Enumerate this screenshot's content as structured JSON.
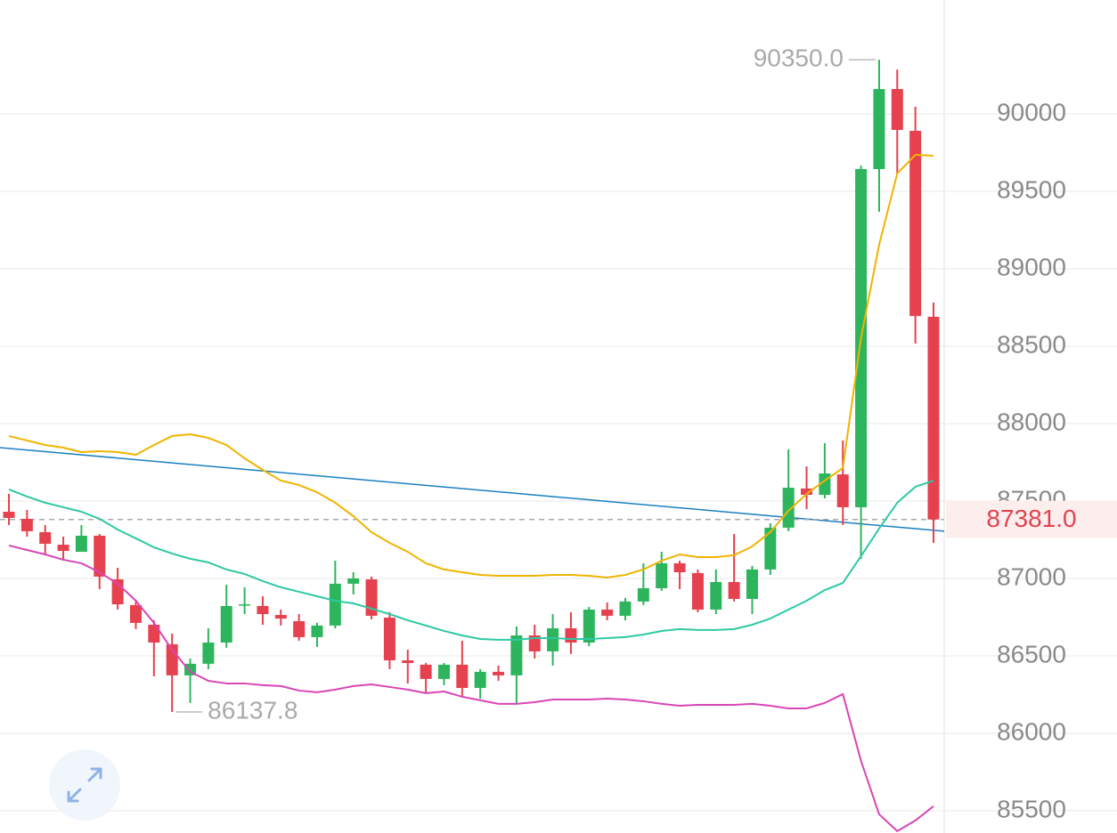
{
  "chart_data": {
    "type": "candlestick",
    "up_color": "#2db55d",
    "down_color": "#e5414e",
    "ylim": [
      85356,
      90736
    ],
    "yticks": [
      85500,
      86000,
      86500,
      87000,
      87500,
      88000,
      88500,
      89000,
      89500,
      90000
    ],
    "grid": true,
    "open": [
      87431,
      87385,
      87299,
      87218,
      87172,
      87276,
      86994,
      86828,
      86701,
      86575,
      86374,
      86449,
      86586,
      86828,
      86822,
      86764,
      86724,
      86621,
      86696,
      86966,
      86994,
      86747,
      86471,
      86443,
      86351,
      86443,
      86293,
      86397,
      86374,
      86632,
      86529,
      86678,
      86586,
      86799,
      86759,
      86851,
      86937,
      87098,
      87035,
      86799,
      86977,
      86868,
      87058,
      87328,
      87581,
      87540,
      87672,
      87460,
      89644,
      90161,
      89891,
      88690
    ],
    "high": [
      87546,
      87443,
      87345,
      87270,
      87345,
      87287,
      87069,
      86862,
      86730,
      86644,
      86483,
      86678,
      86960,
      86943,
      86885,
      86799,
      86770,
      86713,
      87115,
      87040,
      87012,
      86782,
      86540,
      86454,
      86454,
      86598,
      86414,
      86437,
      86690,
      86701,
      86770,
      86782,
      86816,
      86845,
      86874,
      87098,
      87172,
      87115,
      87058,
      87058,
      87287,
      87081,
      87356,
      87833,
      87724,
      87874,
      87891,
      89667,
      90350,
      90287,
      90046,
      88782
    ],
    "low": [
      87345,
      87270,
      87161,
      87115,
      87172,
      86931,
      86799,
      86673,
      86368,
      86137.8,
      86196,
      86414,
      86552,
      86770,
      86701,
      86696,
      86598,
      86558,
      86678,
      86897,
      86736,
      86414,
      86322,
      86264,
      86311,
      86242,
      86224,
      86339,
      86196,
      86483,
      86437,
      86512,
      86563,
      86730,
      86730,
      86828,
      86920,
      86931,
      86782,
      86770,
      86851,
      86770,
      87023,
      87305,
      87448,
      87517,
      87345,
      87127,
      89368,
      89615,
      88517,
      87230
    ],
    "close": [
      87391,
      87305,
      87224,
      87178,
      87276,
      87012,
      86833,
      86713,
      86586,
      86374,
      86449,
      86586,
      86822,
      86833,
      86770,
      86741,
      86621,
      86696,
      86966,
      87000,
      86759,
      86471,
      86454,
      86351,
      86443,
      86293,
      86397,
      86374,
      86632,
      86529,
      86678,
      86586,
      86799,
      86759,
      86851,
      86937,
      87098,
      87040,
      86799,
      86977,
      86868,
      87058,
      87328,
      87586,
      87540,
      87678,
      87460,
      89644,
      90161,
      89897,
      88695,
      87381
    ],
    "series": [
      {
        "color": "#f0b400",
        "values": [
          87920,
          87891,
          87862,
          87845,
          87816,
          87822,
          87816,
          87799,
          87862,
          87920,
          87931,
          87908,
          87862,
          87776,
          87701,
          87632,
          87603,
          87557,
          87489,
          87402,
          87299,
          87230,
          87172,
          87098,
          87058,
          87040,
          87023,
          87017,
          87017,
          87017,
          87023,
          87023,
          87017,
          87006,
          87023,
          87058,
          87115,
          87155,
          87138,
          87138,
          87150,
          87207,
          87299,
          87437,
          87546,
          87632,
          87713,
          88552,
          89155,
          89615,
          89736,
          89730
        ]
      },
      {
        "color": "#2ec9a3",
        "values": [
          87575,
          87529,
          87489,
          87460,
          87431,
          87385,
          87316,
          87259,
          87201,
          87161,
          87127,
          87104,
          87058,
          87029,
          86983,
          86943,
          86914,
          86885,
          86856,
          86839,
          86805,
          86770,
          86730,
          86696,
          86661,
          86632,
          86609,
          86604,
          86604,
          86615,
          86615,
          86609,
          86609,
          86615,
          86621,
          86638,
          86661,
          86673,
          86667,
          86667,
          86673,
          86701,
          86741,
          86799,
          86856,
          86925,
          86971,
          87144,
          87322,
          87489,
          87592,
          87632
        ]
      },
      {
        "color": "#d946b5",
        "values": [
          87213,
          87184,
          87155,
          87121,
          87098,
          87040,
          86966,
          86856,
          86713,
          86540,
          86397,
          86339,
          86322,
          86322,
          86311,
          86305,
          86276,
          86265,
          86282,
          86305,
          86316,
          86299,
          86282,
          86259,
          86270,
          86236,
          86213,
          86190,
          86190,
          86201,
          86218,
          86218,
          86218,
          86224,
          86218,
          86207,
          86190,
          86178,
          86184,
          86184,
          86184,
          86190,
          86178,
          86161,
          86161,
          86196,
          86253,
          85822,
          85477,
          85368,
          85437,
          85529
        ]
      }
    ],
    "trendline": {
      "color": "#1a7fc1",
      "values": [
        87845,
        87305
      ]
    },
    "annotations": [
      {
        "value": 90350,
        "label": "90350.0"
      },
      {
        "value": 86137.8,
        "label": "86137.8"
      }
    ],
    "last_price": {
      "value": 87381,
      "label": "87381.0"
    }
  }
}
